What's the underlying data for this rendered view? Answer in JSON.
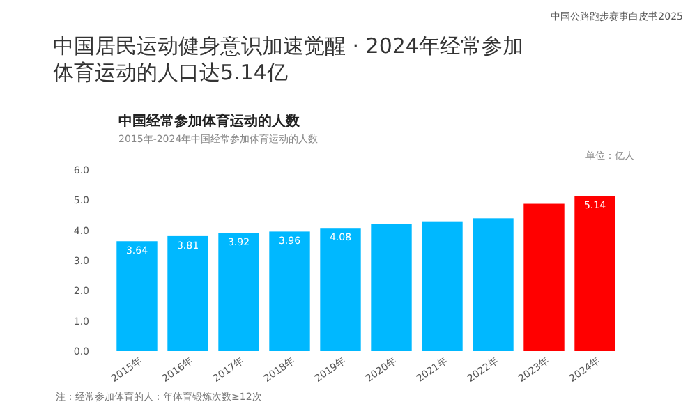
{
  "chart_data": {
    "type": "bar",
    "title": "中国居民运动健身意识加速觉醒 · 2024年经常参加体育运动的人口达5.14亿",
    "subtitle": "中国经常参加体育运动的人数",
    "annotations": [
      "中国公路跑步赛事白皮书2025",
      "2015年-2024年中国经常参加体育运动的人数",
      "单位：亿人",
      "注：经常参加体育的人：年体育锻炼次数≥12次"
    ],
    "categories": [
      "2015年",
      "2016年",
      "2017年",
      "2018年",
      "2019年",
      "2020年",
      "2021年",
      "2022年",
      "2023年",
      "2024年"
    ],
    "values": [
      3.64,
      3.81,
      3.92,
      3.96,
      4.08,
      4.2,
      4.3,
      4.4,
      4.88,
      5.14
    ],
    "colors": [
      "#00b8ff",
      "#00b8ff",
      "#00b8ff",
      "#00b8ff",
      "#00b8ff",
      "#00b8ff",
      "#00b8ff",
      "#00b8ff",
      "#ff0000",
      "#ff0000"
    ],
    "value_labels": [
      "3.64",
      "3.81",
      "3.92",
      "3.96",
      "4.08",
      null,
      null,
      null,
      null,
      "5.14"
    ],
    "ylim": [
      0,
      6
    ],
    "yticks": [
      {
        "value": 0,
        "label": "0.0"
      },
      {
        "value": 1,
        "label": "1.0"
      },
      {
        "value": 2,
        "label": "2.0"
      },
      {
        "value": 3,
        "label": "3.0"
      },
      {
        "value": 4,
        "label": "4.0"
      },
      {
        "value": 5,
        "label": "5.0"
      },
      {
        "value": 6,
        "label": "6.0"
      }
    ],
    "grid": false
  }
}
